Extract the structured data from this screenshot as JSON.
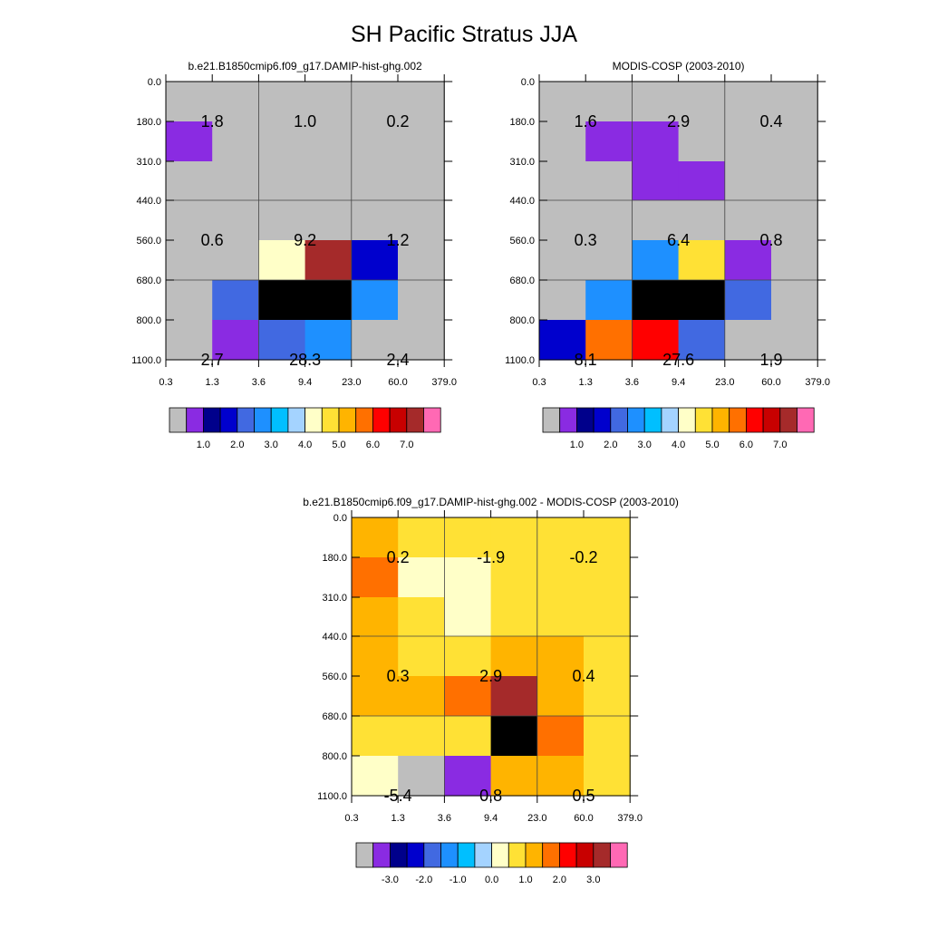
{
  "title": "SH Pacific Stratus JJA",
  "chart_data": [
    {
      "type": "heatmap",
      "title": "b.e21.B1850cmip6.f09_g17.DAMIP-hist-ghg.002",
      "x_ticks": [
        "0.3",
        "1.3",
        "3.6",
        "9.4",
        "23.0",
        "60.0",
        "379.0"
      ],
      "y_ticks": [
        "0.0",
        "180.0",
        "310.0",
        "440.0",
        "560.0",
        "680.0",
        "800.0",
        "1100.0"
      ],
      "grid": true,
      "cells": [
        [
          0,
          0,
          0,
          0,
          0,
          0
        ],
        [
          1,
          0,
          0,
          0,
          0,
          0
        ],
        [
          0,
          0,
          0,
          0,
          0,
          0
        ],
        [
          0,
          0,
          0,
          0,
          0,
          0
        ],
        [
          0,
          0,
          8,
          14,
          3,
          0
        ],
        [
          0,
          4,
          18,
          18,
          5,
          0
        ],
        [
          0,
          1,
          4,
          5,
          0,
          0
        ]
      ],
      "summary_values": [
        [
          "1.8",
          "1.0",
          "0.2"
        ],
        [
          "0.6",
          "9.2",
          "1.2"
        ],
        [
          "2.7",
          "28.3",
          "2.4"
        ]
      ],
      "colorbar": {
        "labels": [
          "1.0",
          "2.0",
          "3.0",
          "4.0",
          "5.0",
          "6.0",
          "7.0"
        ]
      }
    },
    {
      "type": "heatmap",
      "title": "MODIS-COSP (2003-2010)",
      "x_ticks": [
        "0.3",
        "1.3",
        "3.6",
        "9.4",
        "23.0",
        "60.0",
        "379.0"
      ],
      "y_ticks": [
        "0.0",
        "180.0",
        "310.0",
        "440.0",
        "560.0",
        "680.0",
        "800.0",
        "1100.0"
      ],
      "grid": true,
      "cells": [
        [
          0,
          0,
          0,
          0,
          0,
          0
        ],
        [
          0,
          1,
          1,
          0,
          0,
          0
        ],
        [
          0,
          0,
          1,
          1,
          0,
          0
        ],
        [
          0,
          0,
          0,
          0,
          0,
          0
        ],
        [
          0,
          0,
          5,
          9,
          1,
          0
        ],
        [
          0,
          5,
          18,
          18,
          4,
          0
        ],
        [
          3,
          11,
          12,
          4,
          0,
          0
        ]
      ],
      "summary_values": [
        [
          "1.6",
          "2.9",
          "0.4"
        ],
        [
          "0.3",
          "6.4",
          "0.8"
        ],
        [
          "8.1",
          "27.6",
          "1.9"
        ]
      ],
      "colorbar": {
        "labels": [
          "1.0",
          "2.0",
          "3.0",
          "4.0",
          "5.0",
          "6.0",
          "7.0"
        ]
      }
    },
    {
      "type": "heatmap",
      "title": "b.e21.B1850cmip6.f09_g17.DAMIP-hist-ghg.002 - MODIS-COSP (2003-2010)",
      "x_ticks": [
        "0.3",
        "1.3",
        "3.6",
        "9.4",
        "23.0",
        "60.0",
        "379.0"
      ],
      "y_ticks": [
        "0.0",
        "180.0",
        "310.0",
        "440.0",
        "560.0",
        "680.0",
        "800.0",
        "1100.0"
      ],
      "grid": true,
      "cells": [
        [
          10,
          9,
          9,
          9,
          9,
          9
        ],
        [
          11,
          8,
          8,
          9,
          9,
          9
        ],
        [
          10,
          9,
          8,
          9,
          9,
          9
        ],
        [
          10,
          9,
          9,
          10,
          10,
          9
        ],
        [
          10,
          10,
          11,
          14,
          10,
          9
        ],
        [
          9,
          9,
          9,
          18,
          11,
          9
        ],
        [
          8,
          0,
          1,
          10,
          10,
          9
        ]
      ],
      "summary_values": [
        [
          "0.2",
          "-1.9",
          "-0.2"
        ],
        [
          "0.3",
          "2.9",
          "0.4"
        ],
        [
          "-5.4",
          "0.8",
          "0.5"
        ]
      ],
      "colorbar": {
        "labels": [
          "-3.0",
          "-2.0",
          "-1.0",
          "0.0",
          "1.0",
          "2.0",
          "3.0"
        ]
      }
    }
  ],
  "palette": [
    "#bebebe",
    "#8a2be2",
    "#00008b",
    "#0000cd",
    "#4169e1",
    "#1e90ff",
    "#00bfff",
    "#a4d3ff",
    "#ffffc8",
    "#ffe135",
    "#ffb400",
    "#ff7000",
    "#ff0000",
    "#c80000",
    "#a52a2a",
    "#ff69b4"
  ]
}
